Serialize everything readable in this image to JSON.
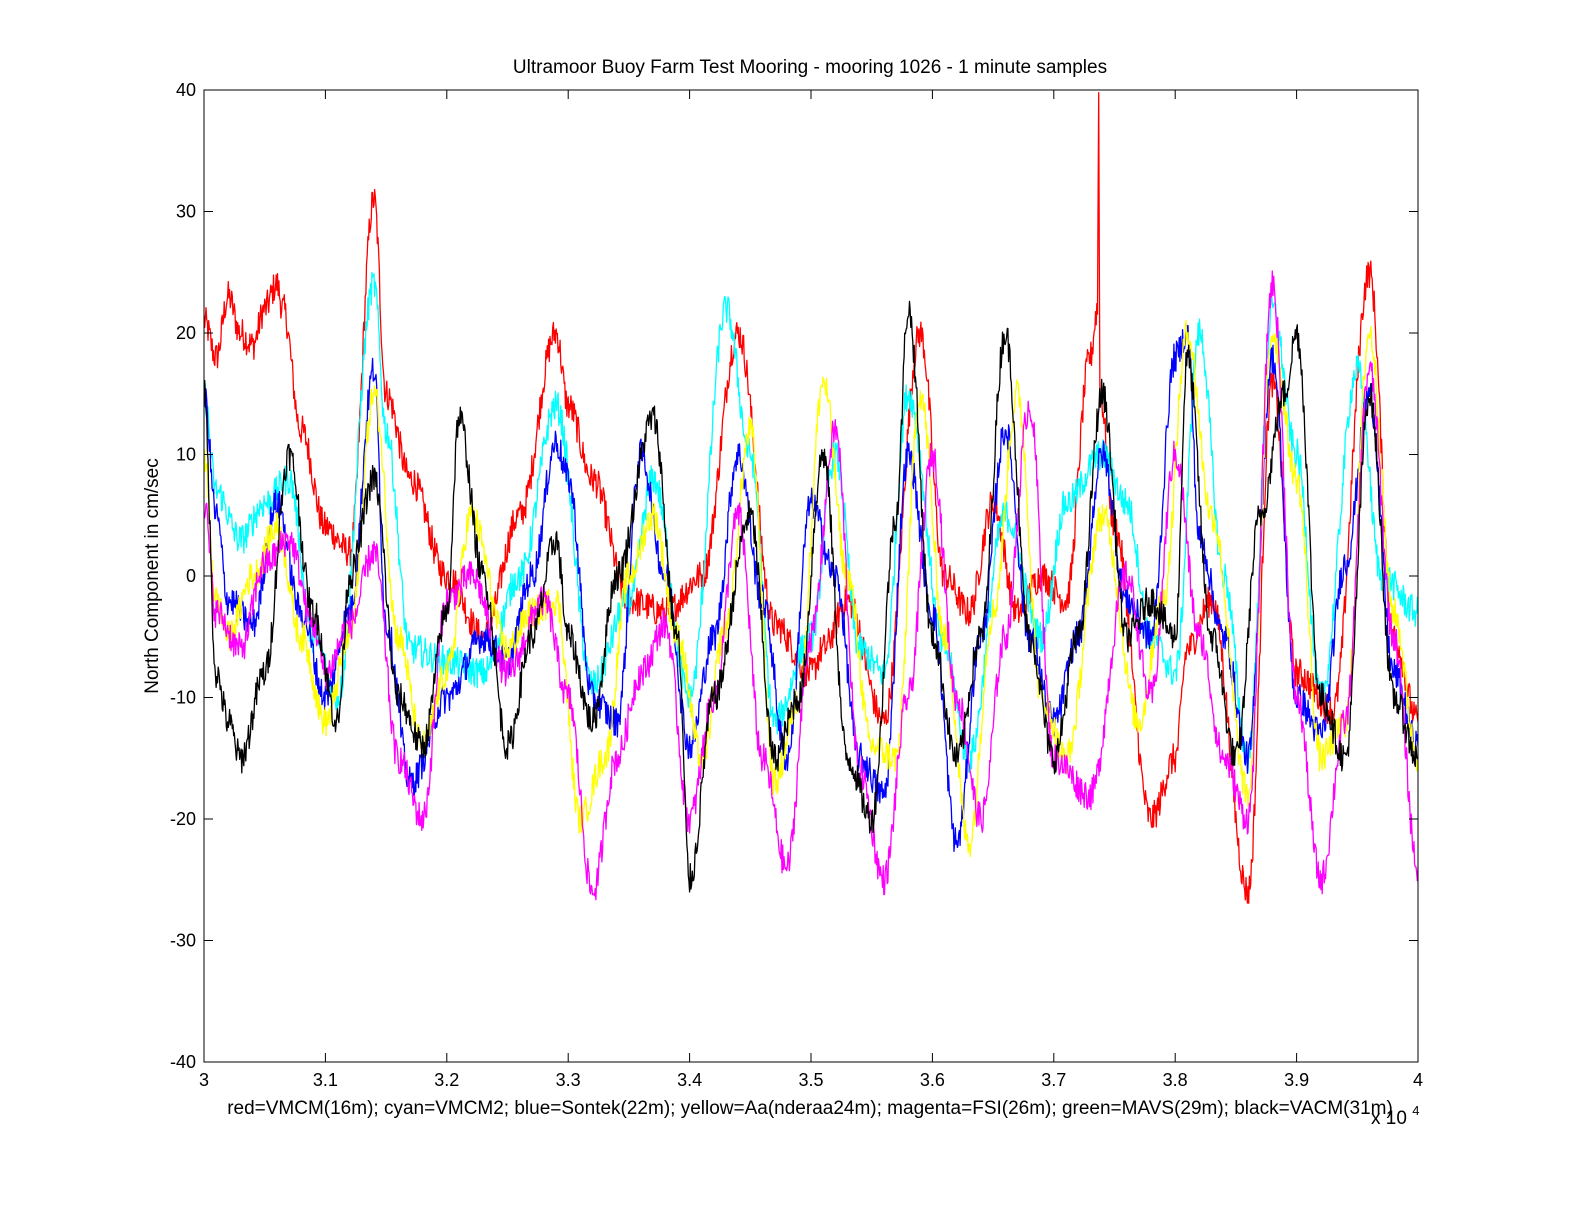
{
  "chart_data": {
    "type": "line",
    "title": "Ultramoor Buoy Farm Test Mooring - mooring 1026 - 1 minute samples",
    "ylabel": "North Component in cm/sec",
    "xlabel": "red=VMCM(16m); cyan=VMCM2; blue=Sontek(22m); yellow=Aa(nderaa24m); magenta=FSI(26m); green=MAVS(29m); black=VACM(31m)",
    "x_multiplier": "x 10",
    "x_multiplier_exp": "4",
    "xlim": [
      3,
      4
    ],
    "ylim": [
      -40,
      40
    ],
    "x_ticks": [
      "3",
      "3.1",
      "3.2",
      "3.3",
      "3.4",
      "3.5",
      "3.6",
      "3.7",
      "3.8",
      "3.9",
      "4"
    ],
    "y_ticks": [
      "40",
      "30",
      "20",
      "10",
      "0",
      "-10",
      "-20",
      "-30",
      "-40"
    ],
    "grid": false,
    "legend": "none",
    "colors": {
      "red": "#ff0000",
      "cyan": "#00ffff",
      "blue": "#0000ff",
      "yellow": "#ffff00",
      "magenta": "#ff00ff",
      "black": "#000000"
    },
    "series": [
      {
        "color": "#ff0000",
        "x": [
          3.0,
          3.01,
          3.02,
          3.03,
          3.04,
          3.05,
          3.06,
          3.065,
          3.08,
          3.1,
          3.12,
          3.14,
          3.15,
          3.17,
          3.2,
          3.23,
          3.26,
          3.29,
          3.3,
          3.32,
          3.35,
          3.38,
          3.41,
          3.44,
          3.47,
          3.5,
          3.51,
          3.53,
          3.56,
          3.59,
          3.61,
          3.63,
          3.65,
          3.67,
          3.69,
          3.71,
          3.73,
          3.736,
          3.737,
          3.738,
          3.75,
          3.78,
          3.8,
          3.81,
          3.83,
          3.86,
          3.88,
          3.9,
          3.93,
          3.96,
          3.98,
          4.0
        ],
        "y": [
          21,
          18,
          23,
          20,
          19,
          22,
          24,
          22,
          12,
          4,
          2,
          31,
          15,
          8,
          0,
          -5,
          5,
          20,
          14,
          8,
          -2,
          -3,
          0,
          20,
          -4,
          -8,
          -6,
          -2,
          -12,
          20,
          0,
          -3,
          6,
          -3,
          0,
          -2,
          18,
          22,
          40,
          15,
          4,
          -20,
          -15,
          -6,
          -2,
          -26,
          16,
          -8,
          -11,
          25,
          -5,
          -12
        ]
      },
      {
        "color": "#00ffff",
        "x": [
          3.0,
          3.01,
          3.03,
          3.05,
          3.07,
          3.09,
          3.11,
          3.14,
          3.15,
          3.17,
          3.2,
          3.23,
          3.26,
          3.29,
          3.32,
          3.35,
          3.37,
          3.4,
          3.43,
          3.45,
          3.47,
          3.5,
          3.52,
          3.54,
          3.56,
          3.58,
          3.61,
          3.63,
          3.66,
          3.69,
          3.71,
          3.74,
          3.76,
          3.78,
          3.8,
          3.82,
          3.84,
          3.86,
          3.88,
          3.9,
          3.92,
          3.95,
          3.97,
          4.0
        ],
        "y": [
          15,
          7,
          3,
          6,
          8,
          -5,
          -10,
          24,
          12,
          -6,
          -7,
          -8,
          0,
          14,
          -9,
          -2,
          8,
          -10,
          22,
          10,
          -12,
          -5,
          10,
          -6,
          -8,
          15,
          -6,
          -15,
          5,
          -5,
          6,
          10,
          6,
          -5,
          -8,
          20,
          0,
          -15,
          22,
          10,
          -10,
          17,
          0,
          -3
        ]
      },
      {
        "color": "#0000ff",
        "x": [
          3.0,
          3.01,
          3.02,
          3.04,
          3.06,
          3.08,
          3.1,
          3.12,
          3.14,
          3.15,
          3.17,
          3.2,
          3.23,
          3.25,
          3.27,
          3.29,
          3.3,
          3.32,
          3.34,
          3.36,
          3.38,
          3.4,
          3.42,
          3.44,
          3.46,
          3.48,
          3.5,
          3.52,
          3.54,
          3.56,
          3.58,
          3.6,
          3.62,
          3.64,
          3.66,
          3.68,
          3.7,
          3.72,
          3.74,
          3.76,
          3.78,
          3.8,
          3.81,
          3.82,
          3.84,
          3.86,
          3.88,
          3.9,
          3.92,
          3.94,
          3.96,
          3.98,
          4.0
        ],
        "y": [
          15,
          5,
          -2,
          -4,
          6,
          -3,
          -10,
          -3,
          17,
          -4,
          -17,
          -10,
          -5,
          -7,
          0,
          11,
          8,
          -10,
          -12,
          10,
          0,
          -14,
          -5,
          10,
          -2,
          -15,
          6,
          0,
          -15,
          -18,
          10,
          -3,
          -22,
          -5,
          12,
          -5,
          -12,
          -5,
          10,
          -2,
          -5,
          18,
          20,
          3,
          -5,
          -15,
          18,
          -10,
          -13,
          1,
          15,
          -8,
          -14
        ]
      },
      {
        "color": "#ffff00",
        "x": [
          3.0,
          3.01,
          3.02,
          3.04,
          3.06,
          3.08,
          3.1,
          3.12,
          3.14,
          3.16,
          3.18,
          3.2,
          3.22,
          3.25,
          3.27,
          3.29,
          3.31,
          3.33,
          3.35,
          3.37,
          3.39,
          3.41,
          3.43,
          3.45,
          3.47,
          3.49,
          3.51,
          3.53,
          3.55,
          3.57,
          3.59,
          3.61,
          3.63,
          3.65,
          3.67,
          3.69,
          3.71,
          3.74,
          3.77,
          3.79,
          3.81,
          3.83,
          3.86,
          3.88,
          3.9,
          3.92,
          3.94,
          3.96,
          3.98,
          4.0
        ],
        "y": [
          10,
          -2,
          -5,
          0,
          4,
          -5,
          -12,
          -5,
          15,
          -5,
          -14,
          -8,
          5,
          -6,
          -3,
          -2,
          -20,
          -15,
          0,
          5,
          -5,
          -15,
          -4,
          12,
          -17,
          -10,
          16,
          0,
          -14,
          -15,
          15,
          -5,
          -22,
          -3,
          15,
          -10,
          -15,
          5,
          -12,
          -2,
          20,
          5,
          -18,
          20,
          8,
          -15,
          -12,
          20,
          -3,
          -15
        ]
      },
      {
        "color": "#ff00ff",
        "x": [
          3.0,
          3.01,
          3.03,
          3.05,
          3.07,
          3.09,
          3.1,
          3.12,
          3.14,
          3.16,
          3.18,
          3.2,
          3.22,
          3.25,
          3.28,
          3.3,
          3.32,
          3.34,
          3.36,
          3.38,
          3.4,
          3.42,
          3.44,
          3.46,
          3.48,
          3.5,
          3.52,
          3.54,
          3.56,
          3.58,
          3.6,
          3.62,
          3.64,
          3.66,
          3.68,
          3.7,
          3.73,
          3.76,
          3.78,
          3.8,
          3.82,
          3.84,
          3.86,
          3.88,
          3.9,
          3.92,
          3.94,
          3.96,
          3.98,
          4.0
        ],
        "y": [
          6,
          -3,
          -6,
          1,
          3,
          -4,
          -8,
          -4,
          2,
          -15,
          -20,
          -2,
          0,
          -8,
          -2,
          -10,
          -26,
          -15,
          -8,
          -4,
          -20,
          -10,
          5,
          -15,
          -24,
          -5,
          12,
          -16,
          -25,
          -10,
          10,
          -10,
          -20,
          -5,
          14,
          -15,
          -18,
          0,
          -10,
          10,
          -5,
          -15,
          -20,
          24,
          -10,
          -25,
          -12,
          17,
          -5,
          -24
        ]
      },
      {
        "color": "#000000",
        "x": [
          3.0,
          3.01,
          3.02,
          3.03,
          3.05,
          3.07,
          3.09,
          3.11,
          3.12,
          3.14,
          3.16,
          3.18,
          3.2,
          3.21,
          3.23,
          3.25,
          3.27,
          3.29,
          3.3,
          3.32,
          3.34,
          3.37,
          3.39,
          3.4,
          3.42,
          3.45,
          3.47,
          3.49,
          3.51,
          3.53,
          3.55,
          3.57,
          3.58,
          3.6,
          3.62,
          3.64,
          3.66,
          3.68,
          3.7,
          3.72,
          3.74,
          3.76,
          3.78,
          3.8,
          3.81,
          3.83,
          3.85,
          3.87,
          3.89,
          3.9,
          3.92,
          3.94,
          3.96,
          3.98,
          4.0
        ],
        "y": [
          15,
          -8,
          -12,
          -15,
          -8,
          10,
          -3,
          -12,
          0,
          8,
          -10,
          -14,
          -3,
          13,
          0,
          -14,
          -5,
          3,
          -5,
          -12,
          0,
          13,
          -5,
          -25,
          -10,
          5,
          -15,
          -10,
          10,
          -15,
          -20,
          5,
          22,
          -5,
          -15,
          -5,
          20,
          -5,
          -15,
          -5,
          15,
          -5,
          -2,
          -5,
          18,
          -5,
          -15,
          5,
          15,
          20,
          -10,
          -15,
          15,
          -10,
          -15
        ]
      }
    ]
  }
}
